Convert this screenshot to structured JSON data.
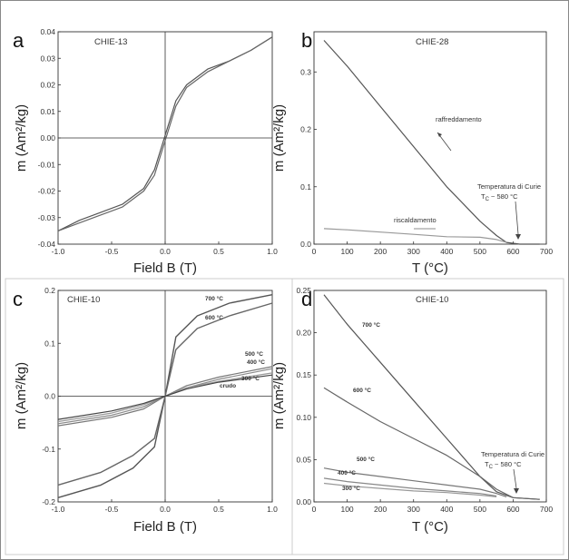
{
  "chart_data": [
    {
      "panel_letter": "a",
      "type": "line",
      "title": "CHIE-13",
      "xlabel": "Field B (T)",
      "ylabel": "m (Am²/kg)",
      "xlim": [
        -1.0,
        1.0
      ],
      "ylim": [
        -0.04,
        0.04
      ],
      "xticks": [
        "-1.0",
        "-0.5",
        "0.0",
        "0.5",
        "1.0"
      ],
      "yticks": [
        "-0.04",
        "-0.03",
        "-0.02",
        "-0.01",
        "0.00",
        "0.01",
        "0.02",
        "0.03",
        "0.04"
      ],
      "grid": false,
      "series": [
        {
          "x": [
            -1.0,
            -0.8,
            -0.6,
            -0.4,
            -0.2,
            -0.1,
            0.0,
            0.1,
            0.2,
            0.4,
            0.6,
            0.8,
            1.0
          ],
          "y": [
            -0.035,
            -0.031,
            -0.028,
            -0.025,
            -0.019,
            -0.012,
            0.001,
            0.014,
            0.02,
            0.026,
            0.029,
            0.033,
            0.038
          ]
        },
        {
          "x": [
            -1.0,
            -0.8,
            -0.6,
            -0.4,
            -0.2,
            -0.1,
            0.0,
            0.1,
            0.2,
            0.4,
            0.6,
            0.8,
            1.0
          ],
          "y": [
            -0.035,
            -0.032,
            -0.029,
            -0.026,
            -0.02,
            -0.014,
            -0.001,
            0.012,
            0.019,
            0.025,
            0.029,
            0.033,
            0.038
          ]
        }
      ]
    },
    {
      "panel_letter": "b",
      "type": "line",
      "title": "CHIE-28",
      "xlabel": "T (°C)",
      "ylabel": "m (Am²/kg)",
      "xlim": [
        0,
        700
      ],
      "ylim": [
        0,
        0.37
      ],
      "xticks": [
        "0",
        "100",
        "200",
        "300",
        "400",
        "500",
        "600",
        "700"
      ],
      "yticks": [
        "0.0",
        "0.1",
        "0.2",
        "0.3"
      ],
      "grid": false,
      "series": [
        {
          "x": [
            30,
            100,
            200,
            300,
            400,
            450,
            500,
            550,
            580,
            620,
            680
          ],
          "y": [
            0.355,
            0.31,
            0.24,
            0.17,
            0.1,
            0.07,
            0.04,
            0.015,
            0.003,
            0.0,
            0.0
          ]
        },
        {
          "x": [
            30,
            100,
            200,
            300,
            400,
            500,
            550,
            580
          ],
          "y": [
            0.027,
            0.025,
            0.021,
            0.017,
            0.013,
            0.012,
            0.008,
            0.003
          ]
        }
      ],
      "annotations": {
        "cooling_label": "raffreddamento",
        "heating_label": "riscaldamento",
        "curie_label": "Temperatura di Curie",
        "curie_value_prefix": "T",
        "curie_value_sub": "C",
        "curie_value_suffix": " ~ 580 °C"
      }
    },
    {
      "panel_letter": "c",
      "type": "line",
      "title": "CHIE-10",
      "xlabel": "Field B (T)",
      "ylabel": "m (Am²/kg)",
      "xlim": [
        -1.0,
        1.0
      ],
      "ylim": [
        -0.25,
        0.25
      ],
      "xticks": [
        "-1.0",
        "-0.5",
        "0.0",
        "0.5",
        "1.0"
      ],
      "yticks": [
        "-0.2",
        "-0.1",
        "0.0",
        "0.1",
        "0.2"
      ],
      "grid": false,
      "series": [
        {
          "name": "700 °C",
          "x": [
            -1.0,
            -0.6,
            -0.3,
            -0.1,
            0.0,
            0.1,
            0.3,
            0.6,
            1.0
          ],
          "y": [
            -0.24,
            -0.21,
            -0.17,
            -0.12,
            0.0,
            0.14,
            0.19,
            0.22,
            0.24
          ]
        },
        {
          "name": "600 °C",
          "x": [
            -1.0,
            -0.6,
            -0.3,
            -0.1,
            0.0,
            0.1,
            0.3,
            0.6,
            1.0
          ],
          "y": [
            -0.21,
            -0.18,
            -0.14,
            -0.1,
            0.0,
            0.11,
            0.16,
            0.19,
            0.22
          ]
        },
        {
          "name": "500 °C",
          "x": [
            -1.0,
            -0.5,
            -0.2,
            0.0,
            0.2,
            0.5,
            1.0
          ],
          "y": [
            -0.07,
            -0.05,
            -0.03,
            0.0,
            0.025,
            0.045,
            0.07
          ]
        },
        {
          "name": "400 °C",
          "x": [
            -1.0,
            -0.5,
            -0.2,
            0.0,
            0.2,
            0.5,
            1.0
          ],
          "y": [
            -0.065,
            -0.045,
            -0.025,
            0.0,
            0.02,
            0.04,
            0.065
          ]
        },
        {
          "name": "300 °C",
          "x": [
            -1.0,
            -0.5,
            -0.2,
            0.0,
            0.2,
            0.5,
            1.0
          ],
          "y": [
            -0.06,
            -0.04,
            -0.02,
            0.0,
            0.02,
            0.035,
            0.055
          ]
        },
        {
          "name": "crudo",
          "x": [
            -1.0,
            -0.5,
            -0.2,
            0.0,
            0.2,
            0.5,
            1.0
          ],
          "y": [
            -0.055,
            -0.035,
            -0.017,
            0.0,
            0.017,
            0.033,
            0.05
          ]
        }
      ]
    },
    {
      "panel_letter": "d",
      "type": "line",
      "title": "CHIE-10",
      "xlabel": "T (°C)",
      "ylabel": "m (Am²/kg)",
      "xlim": [
        0,
        700
      ],
      "ylim": [
        0,
        0.25
      ],
      "xticks": [
        "0",
        "100",
        "200",
        "300",
        "400",
        "500",
        "600",
        "700"
      ],
      "yticks": [
        "0.00",
        "0.05",
        "0.10",
        "0.15",
        "0.20",
        "0.25"
      ],
      "grid": false,
      "series": [
        {
          "name": "700 °C",
          "x": [
            30,
            100,
            200,
            300,
            400,
            500,
            550,
            600,
            680
          ],
          "y": [
            0.245,
            0.21,
            0.165,
            0.12,
            0.075,
            0.03,
            0.012,
            0.005,
            0.003
          ]
        },
        {
          "name": "600 °C",
          "x": [
            30,
            100,
            200,
            300,
            400,
            500,
            550,
            600,
            680
          ],
          "y": [
            0.135,
            0.118,
            0.095,
            0.075,
            0.055,
            0.03,
            0.015,
            0.005,
            0.003
          ]
        },
        {
          "name": "500 °C",
          "x": [
            30,
            100,
            200,
            300,
            400,
            500,
            550,
            580
          ],
          "y": [
            0.04,
            0.035,
            0.03,
            0.025,
            0.02,
            0.015,
            0.01,
            0.006
          ]
        },
        {
          "name": "400 °C",
          "x": [
            30,
            100,
            200,
            300,
            400,
            500,
            550
          ],
          "y": [
            0.028,
            0.024,
            0.02,
            0.016,
            0.013,
            0.01,
            0.007
          ]
        },
        {
          "name": "300 °C",
          "x": [
            30,
            100,
            200,
            300,
            400,
            500,
            550
          ],
          "y": [
            0.022,
            0.019,
            0.016,
            0.013,
            0.011,
            0.008,
            0.006
          ]
        }
      ],
      "annotations": {
        "curie_label": "Temperatura di Curie",
        "curie_value_prefix": "T",
        "curie_value_sub": "C",
        "curie_value_suffix": " ~ 580 °C"
      }
    }
  ]
}
